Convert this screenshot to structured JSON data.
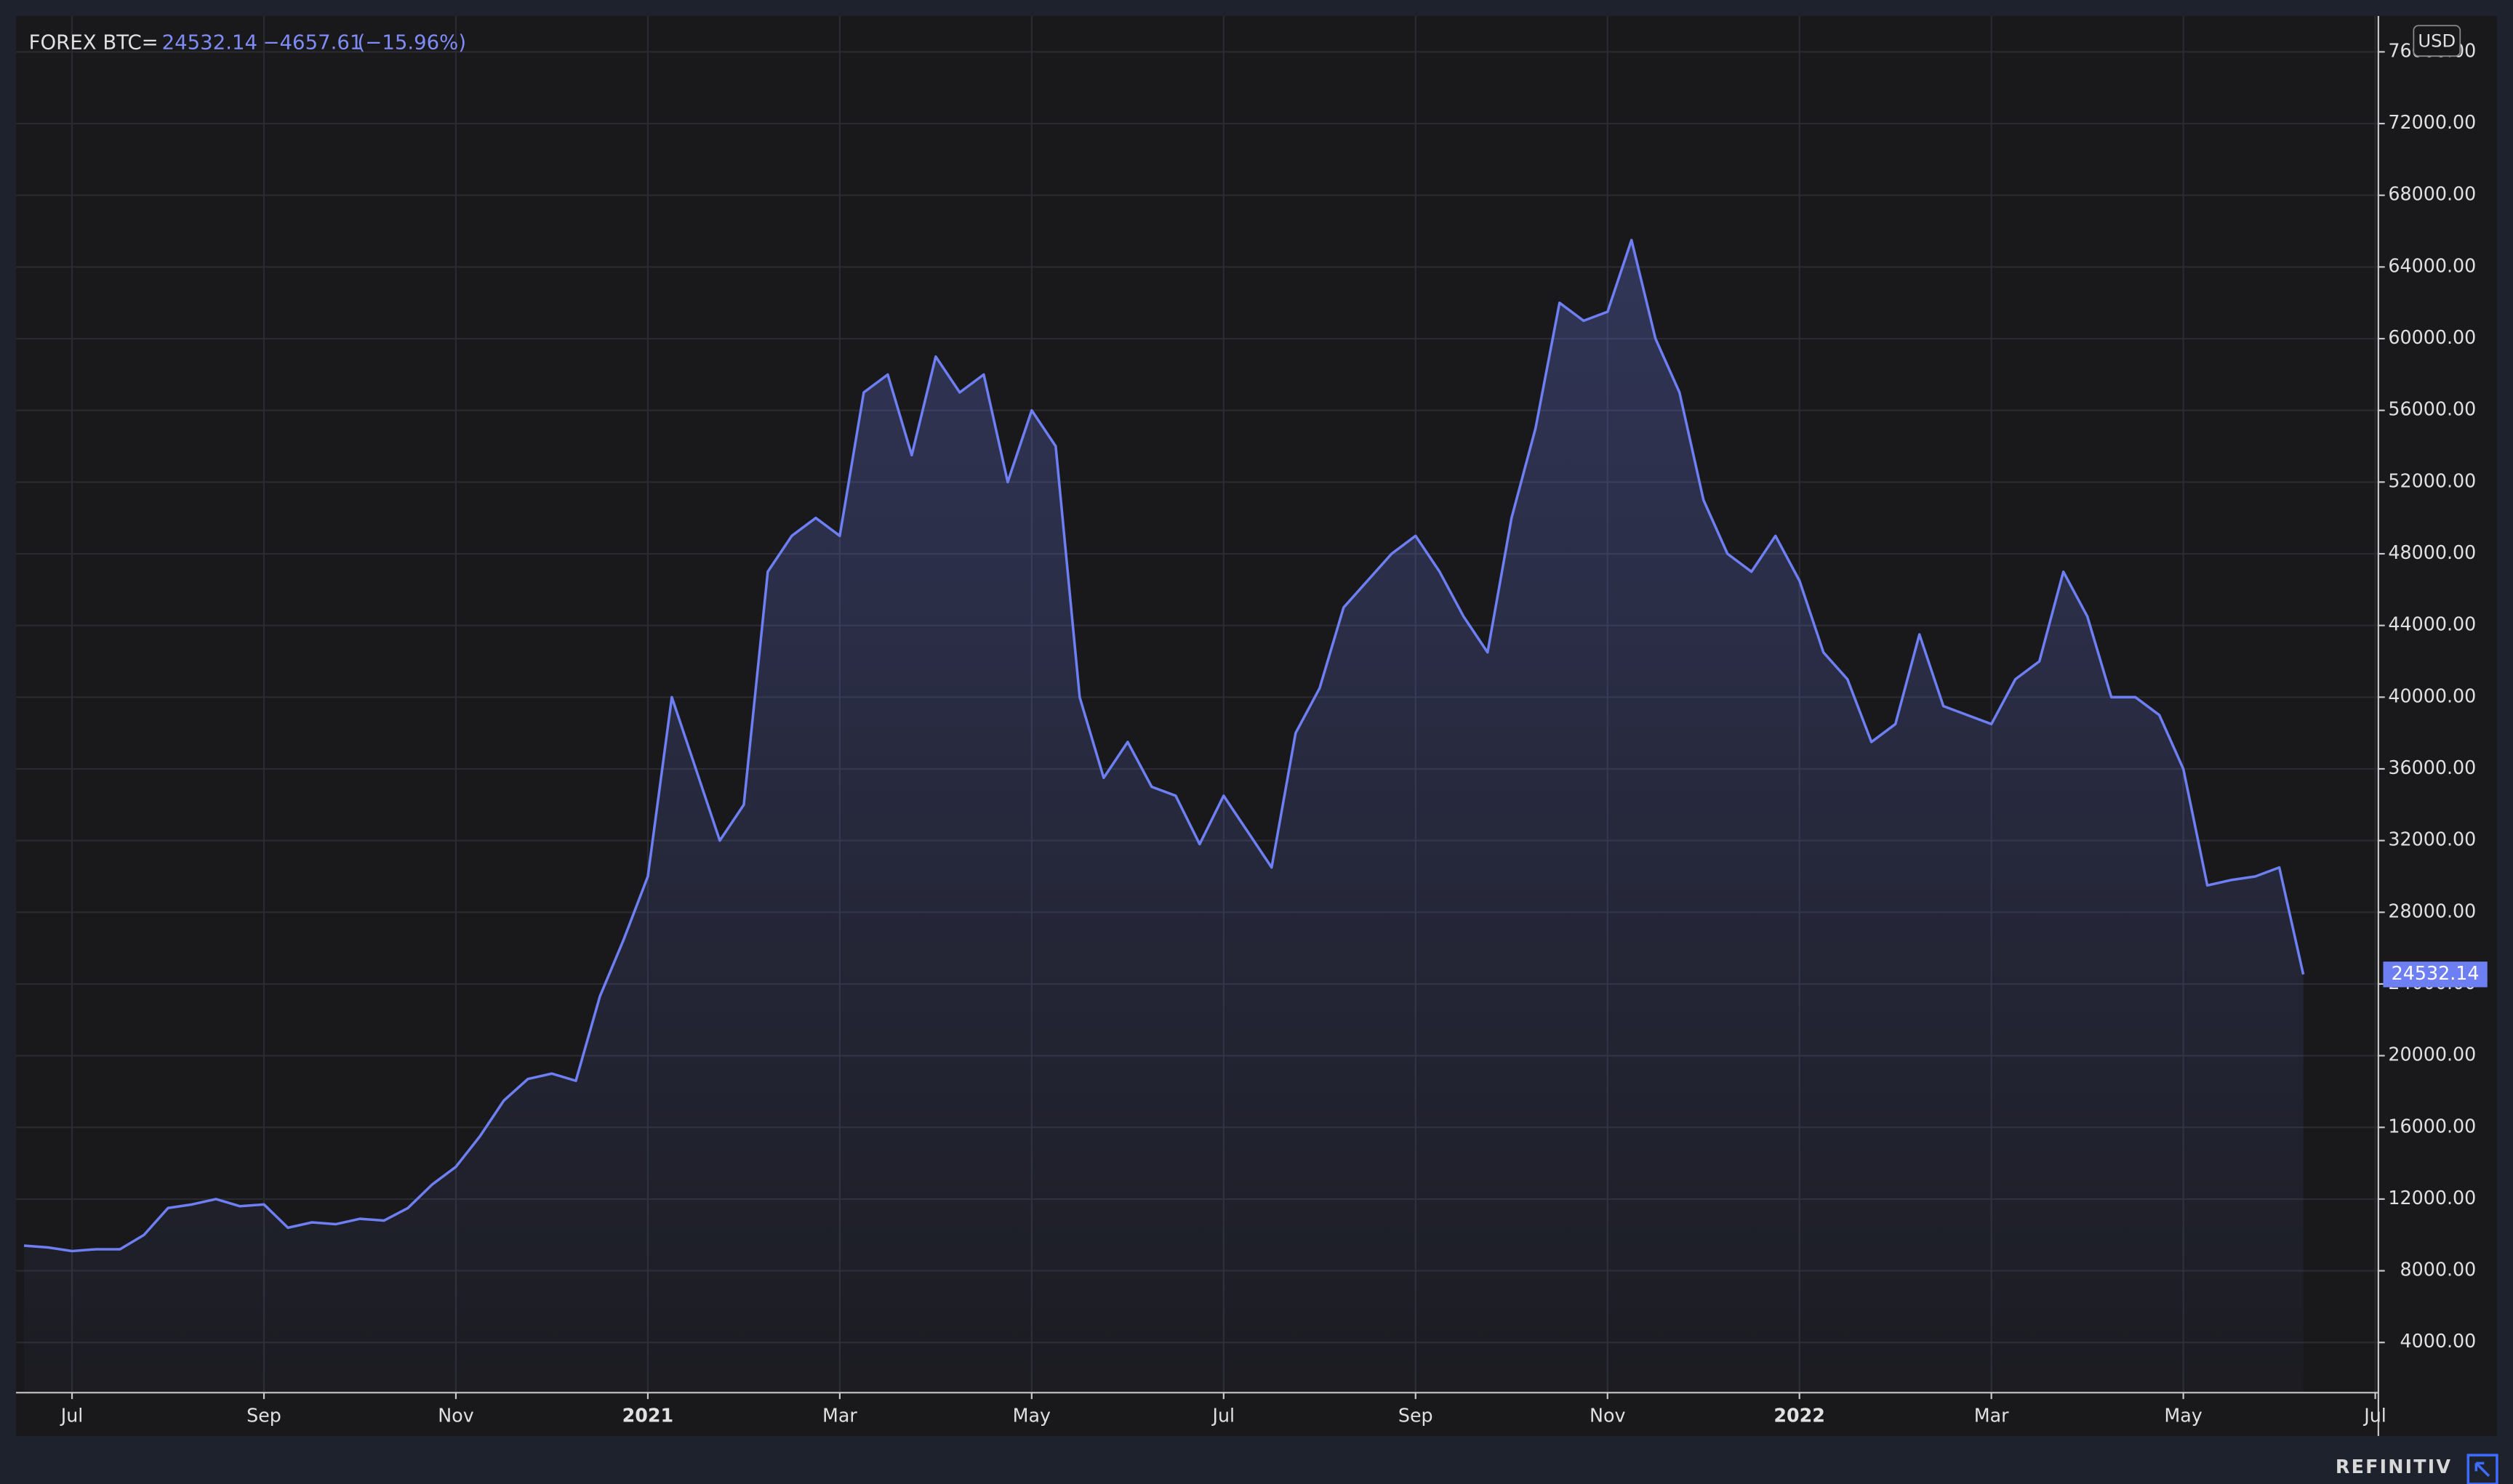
{
  "chart_data": {
    "type": "line",
    "header": {
      "symbol": "FOREX BTC=",
      "price": "24532.14",
      "change": "−4657.61",
      "change_pct": "(−15.96%)"
    },
    "currency": "USD",
    "brand": "REFINITIV",
    "categories": [
      null,
      null,
      "Jul",
      null,
      null,
      null,
      null,
      null,
      null,
      null,
      "Sep",
      null,
      null,
      null,
      null,
      null,
      null,
      null,
      "Nov",
      null,
      null,
      null,
      null,
      null,
      null,
      null,
      "2021",
      null,
      null,
      null,
      null,
      null,
      null,
      null,
      "Mar",
      null,
      null,
      null,
      null,
      null,
      null,
      null,
      "May",
      null,
      null,
      null,
      null,
      null,
      null,
      null,
      "Jul",
      null,
      null,
      null,
      null,
      null,
      null,
      null,
      "Sep",
      null,
      null,
      null,
      null,
      null,
      null,
      null,
      "Nov",
      null,
      null,
      null,
      null,
      null,
      null,
      null,
      "2022",
      null,
      null,
      null,
      null,
      null,
      null,
      null,
      "Mar",
      null,
      null,
      null,
      null,
      null,
      null,
      null,
      "May",
      null,
      null,
      null,
      null,
      null,
      null,
      null,
      "Jul"
    ],
    "series": [
      {
        "name": "FOREX BTC=",
        "color": "#6e7ff3",
        "values": [
          9400,
          9300,
          9100,
          9200,
          9200,
          10000,
          11500,
          11700,
          12000,
          11600,
          11700,
          10400,
          10700,
          10600,
          10900,
          10800,
          11500,
          12800,
          13800,
          15500,
          17500,
          18700,
          19000,
          18600,
          23300,
          26500,
          30000,
          40000,
          36000,
          32000,
          34000,
          47000,
          49000,
          50000,
          49000,
          57000,
          58000,
          53500,
          59000,
          57000,
          58000,
          52000,
          56000,
          54000,
          40000,
          35500,
          37500,
          35000,
          34500,
          31800,
          34500,
          32500,
          30500,
          38000,
          40500,
          45000,
          46500,
          48000,
          49000,
          47000,
          44500,
          42500,
          50000,
          55000,
          62000,
          61000,
          61500,
          65500,
          60000,
          57000,
          51000,
          48000,
          47000,
          49000,
          46500,
          42500,
          41000,
          37500,
          38500,
          43500,
          39500,
          39000,
          38500,
          41000,
          42000,
          47000,
          44500,
          40000,
          40000,
          39000,
          36000,
          29500,
          29800,
          30000,
          30500,
          24532.14,
          null,
          null,
          null
        ]
      }
    ],
    "ylim": [
      1200,
      78000
    ],
    "yticks": [
      {
        "value": 4000,
        "label": "4000.00"
      },
      {
        "value": 8000,
        "label": "8000.00"
      },
      {
        "value": 12000,
        "label": "12000.00"
      },
      {
        "value": 16000,
        "label": "16000.00"
      },
      {
        "value": 20000,
        "label": "20000.00"
      },
      {
        "value": 24000,
        "label": "24000.00"
      },
      {
        "value": 28000,
        "label": "28000.00"
      },
      {
        "value": 32000,
        "label": "32000.00"
      },
      {
        "value": 36000,
        "label": "36000.00"
      },
      {
        "value": 40000,
        "label": "40000.00"
      },
      {
        "value": 44000,
        "label": "44000.00"
      },
      {
        "value": 48000,
        "label": "48000.00"
      },
      {
        "value": 52000,
        "label": "52000.00"
      },
      {
        "value": 56000,
        "label": "56000.00"
      },
      {
        "value": 60000,
        "label": "60000.00"
      },
      {
        "value": 64000,
        "label": "64000.00"
      },
      {
        "value": 68000,
        "label": "68000.00"
      },
      {
        "value": 72000,
        "label": "72000.00"
      },
      {
        "value": 76000,
        "label": "76000.00"
      }
    ],
    "grid": true
  }
}
